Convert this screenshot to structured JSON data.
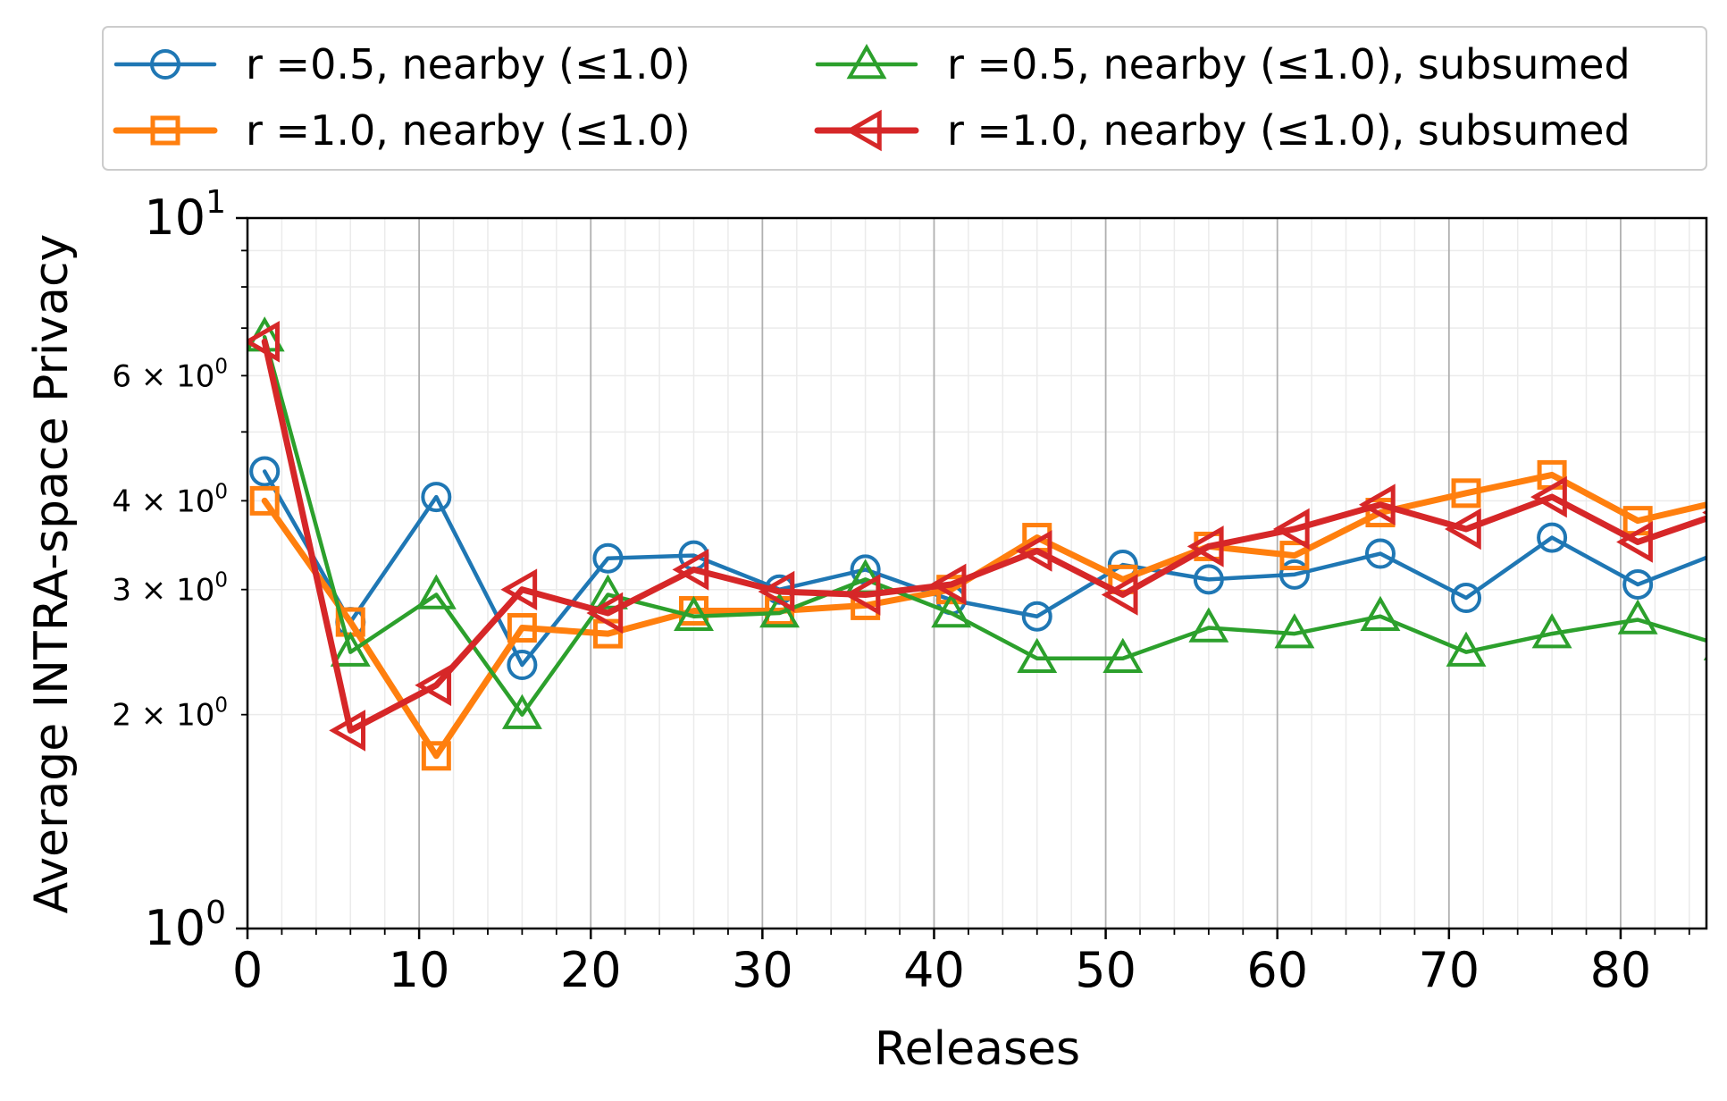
{
  "chart_data": {
    "type": "line",
    "title": "",
    "xlabel": "Releases",
    "ylabel": "Average INTRA-space Privacy",
    "xlim": [
      0,
      85
    ],
    "ylim": [
      1,
      10
    ],
    "yscale": "log",
    "grid": "on (major and minor)",
    "legend_position": "top, above plot",
    "x_ticks": [
      0,
      10,
      20,
      30,
      40,
      50,
      60,
      70,
      80
    ],
    "x_tick_labels": [
      "0",
      "10",
      "20",
      "30",
      "40",
      "50",
      "60",
      "70",
      "80"
    ],
    "y_major_ticks": [
      {
        "value": 1,
        "base": "10",
        "exp": "0"
      },
      {
        "value": 10,
        "base": "10",
        "exp": "1"
      }
    ],
    "y_minor_labeled_ticks": [
      {
        "value": 2,
        "mant": "2",
        "times": "×",
        "base": "10",
        "exp": "0"
      },
      {
        "value": 3,
        "mant": "3",
        "times": "×",
        "base": "10",
        "exp": "0"
      },
      {
        "value": 4,
        "mant": "4",
        "times": "×",
        "base": "10",
        "exp": "0"
      },
      {
        "value": 6,
        "mant": "6",
        "times": "×",
        "base": "10",
        "exp": "0"
      }
    ],
    "x": [
      1,
      6,
      11,
      16,
      21,
      26,
      31,
      36,
      41,
      46,
      51,
      56,
      61,
      66,
      71,
      76,
      81,
      86
    ],
    "series": [
      {
        "name": "r =0.5, nearby (≤1.0)",
        "color": "#1f77b4",
        "marker": "circle",
        "line_width": "thin",
        "values": [
          4.4,
          2.7,
          4.05,
          2.35,
          3.32,
          3.35,
          3.0,
          3.2,
          2.9,
          2.75,
          3.25,
          3.1,
          3.15,
          3.37,
          2.92,
          3.55,
          3.05,
          3.4
        ]
      },
      {
        "name": "r =1.0, nearby (≤1.0)",
        "color": "#ff7f0e",
        "marker": "square",
        "line_width": "thick",
        "values": [
          4.0,
          2.7,
          1.75,
          2.65,
          2.6,
          2.8,
          2.8,
          2.85,
          3.0,
          3.55,
          3.1,
          3.45,
          3.35,
          3.85,
          4.1,
          4.35,
          3.75,
          4.0
        ]
      },
      {
        "name": "r =0.5, nearby (≤1.0), subsumed",
        "color": "#2ca02c",
        "marker": "triangle-up",
        "line_width": "thin",
        "values": [
          6.8,
          2.45,
          2.95,
          2.0,
          2.95,
          2.75,
          2.78,
          3.1,
          2.78,
          2.4,
          2.4,
          2.65,
          2.6,
          2.75,
          2.45,
          2.6,
          2.72,
          2.5
        ]
      },
      {
        "name": "r =1.0, nearby (≤1.0), subsumed",
        "color": "#d62728",
        "marker": "triangle-left",
        "line_width": "thick",
        "values": [
          6.7,
          1.9,
          2.2,
          3.0,
          2.78,
          3.2,
          2.98,
          2.95,
          3.05,
          3.4,
          2.95,
          3.45,
          3.65,
          3.95,
          3.65,
          4.05,
          3.5,
          3.85
        ]
      }
    ]
  }
}
